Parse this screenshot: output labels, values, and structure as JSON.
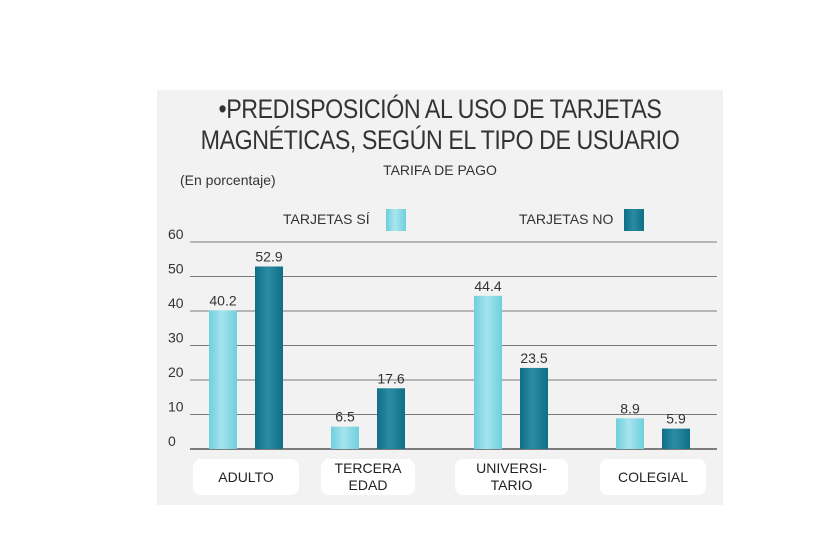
{
  "header": {
    "bullet": "•",
    "title_line1": "PREDISPOSICIÓN AL USO DE TARJETAS",
    "title_line2": "MAGNÉTICAS, SEGÚN EL TIPO DE USUARIO",
    "subtitle": "TARIFA DE PAGO",
    "unit": "(En porcentaje)"
  },
  "colors": {
    "si": "#6fcfdc",
    "no": "#0f6f86",
    "grid": "#7a7a7a",
    "panel": "#f2f2f2"
  },
  "chart_data": {
    "type": "bar",
    "title": "PREDISPOSICIÓN AL USO DE TARJETAS MAGNÉTICAS, SEGÚN EL TIPO DE USUARIO",
    "subtitle": "TARIFA DE PAGO",
    "ylabel": "(En porcentaje)",
    "categories": [
      "ADULTO",
      "TERCERA\nEDAD",
      "UNIVERSI-\nTARIO",
      "COLEGIAL"
    ],
    "series": [
      {
        "name": "TARJETAS SÍ",
        "values": [
          40.2,
          6.5,
          44.4,
          8.9
        ]
      },
      {
        "name": "TARJETAS NO",
        "values": [
          52.9,
          17.6,
          23.5,
          5.9
        ]
      }
    ],
    "data_labels": [
      [
        "40.2",
        "6.5",
        "44.4",
        "8.9"
      ],
      [
        "52.9",
        "17.6",
        "23.5",
        "5.9"
      ]
    ],
    "yticks": [
      "0",
      "10",
      "20",
      "30",
      "40",
      "50",
      "60"
    ],
    "ylim": [
      0,
      60
    ],
    "grid": true,
    "legend": "top"
  }
}
